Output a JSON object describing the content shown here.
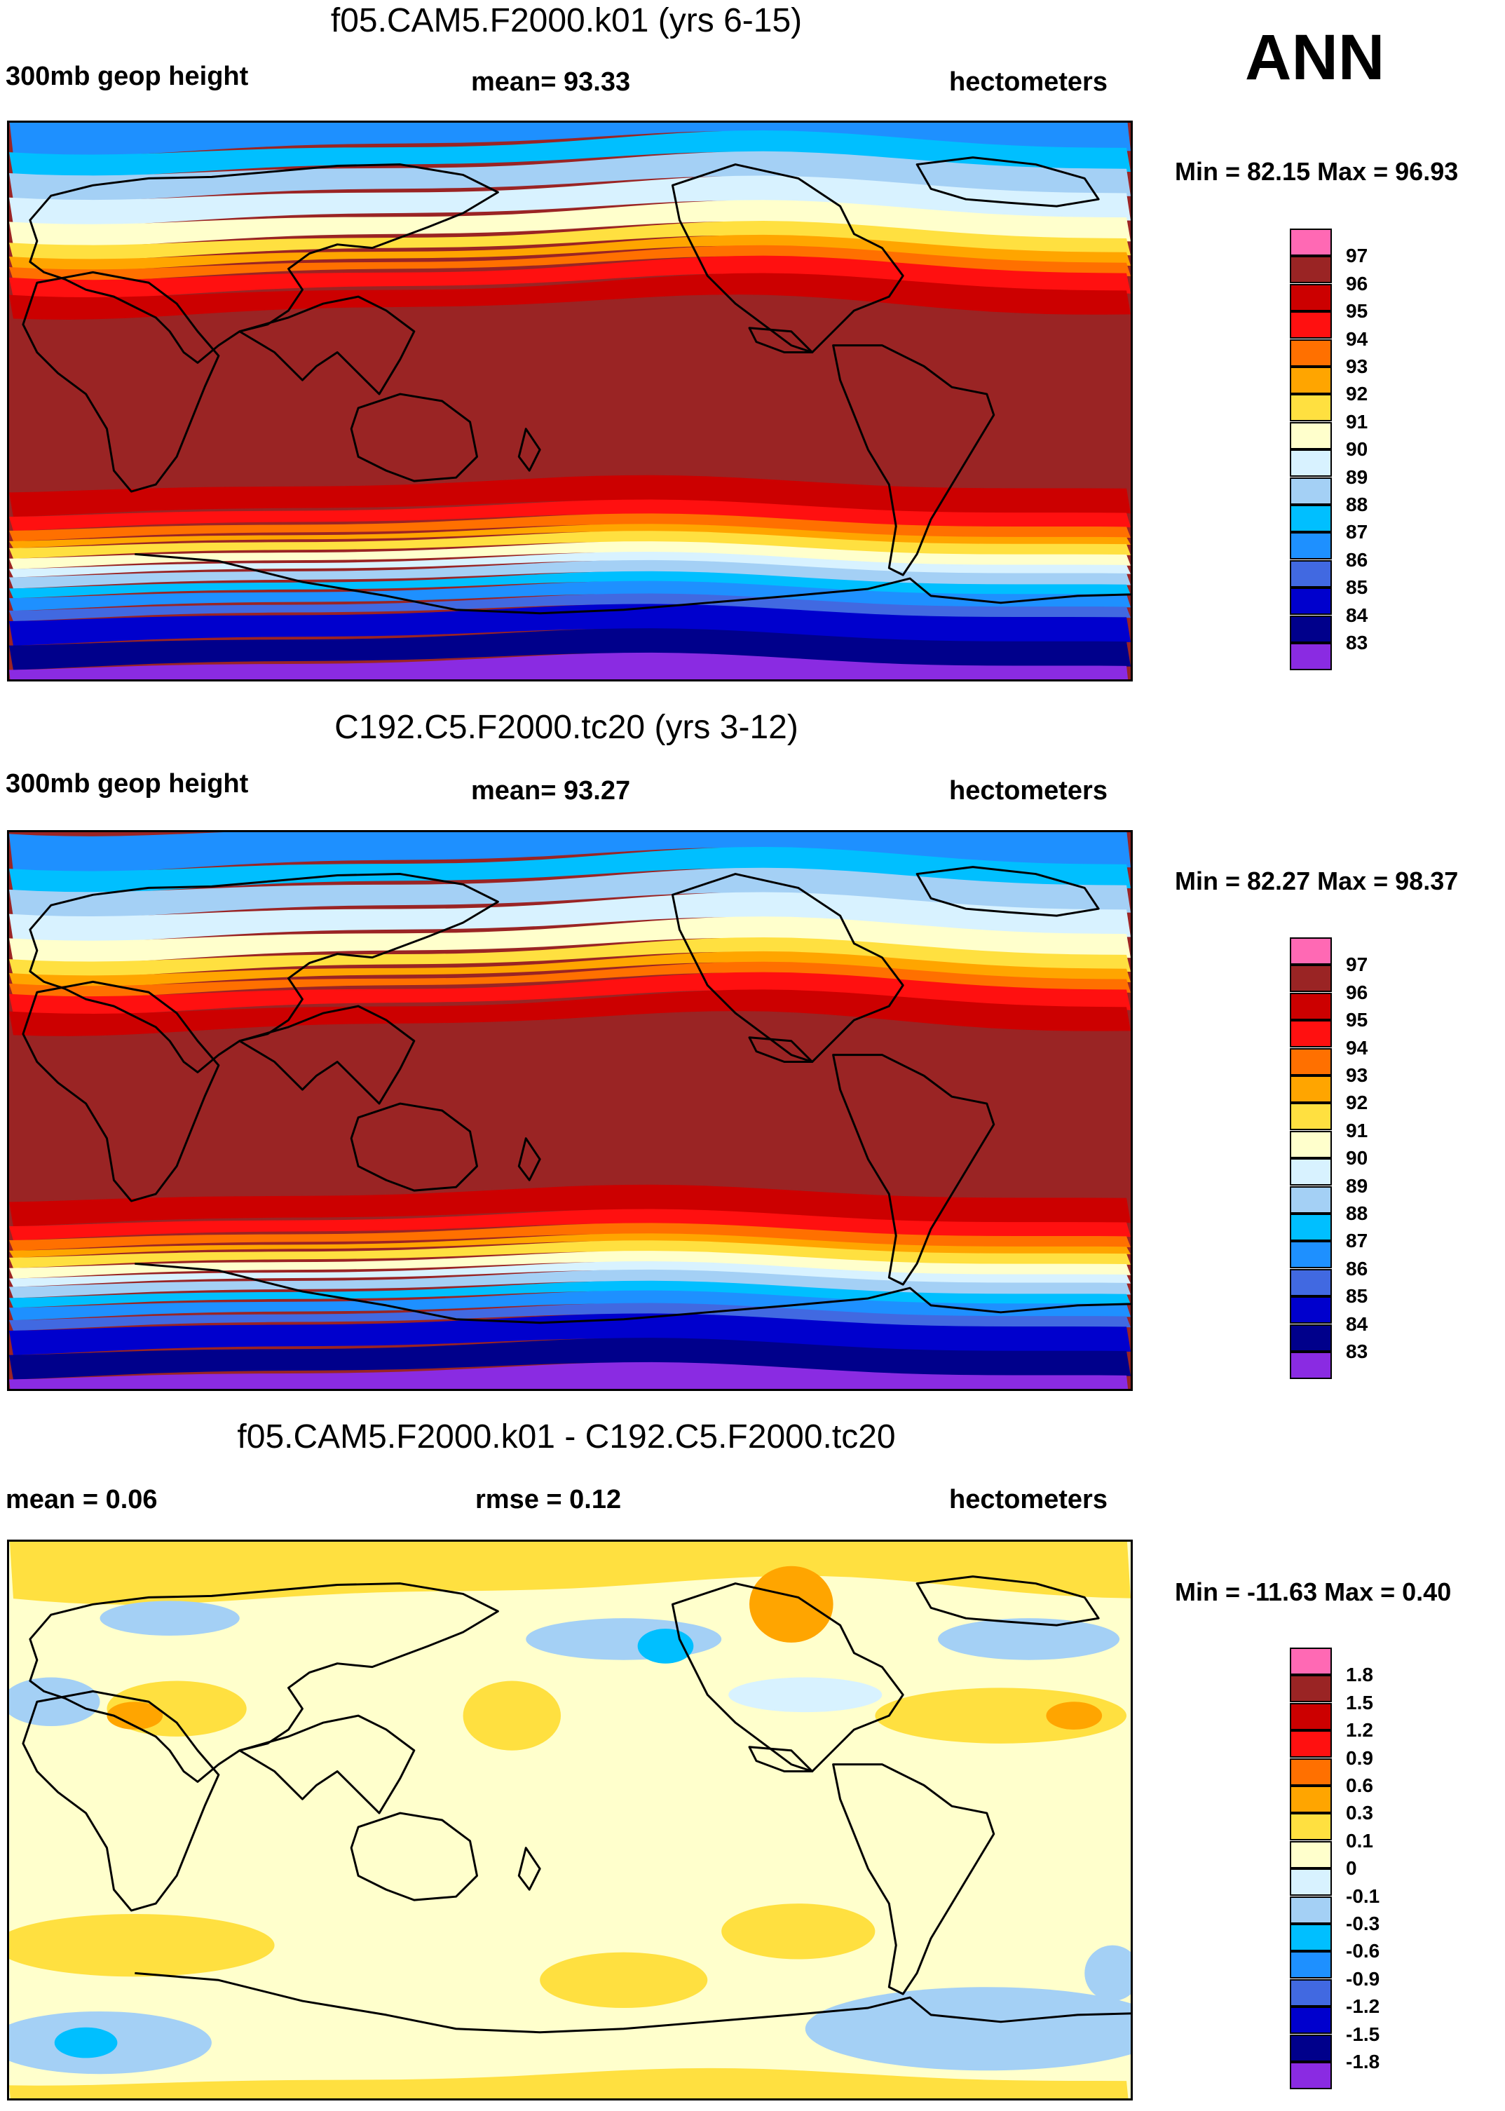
{
  "season": "ANN",
  "colors": {
    "abs": [
      "#8a2be2",
      "#00008b",
      "#0000cd",
      "#4169e1",
      "#1e90ff",
      "#00bfff",
      "#a4d0f5",
      "#d8f2ff",
      "#ffffcc",
      "#ffe040",
      "#ffa500",
      "#ff7000",
      "#ff1010",
      "#cc0000",
      "#9a2424",
      "#ff69b4"
    ],
    "diff": [
      "#8a2be2",
      "#00008b",
      "#0000cd",
      "#4169e1",
      "#1e90ff",
      "#00bfff",
      "#a4d0f5",
      "#d8f2ff",
      "#ffffcc",
      "#ffe040",
      "#ffa500",
      "#ff7000",
      "#ff1010",
      "#cc0000",
      "#9a2424",
      "#ff69b4"
    ],
    "coast": "#000000"
  },
  "panels": [
    {
      "title": "f05.CAM5.F2000.k01 (yrs 6-15)",
      "left_label": "300mb geop height",
      "center_label": "mean=  93.33",
      "units": "hectometers",
      "minmax": "Min =  82.15 Max =  96.93",
      "chart_data": {
        "type": "heatmap",
        "variable": "300mb geop height",
        "units": "hectometers",
        "mean": 93.33,
        "min": 82.15,
        "max": 96.93,
        "levels": [
          "97",
          "96",
          "95",
          "94",
          "93",
          "92",
          "91",
          "90",
          "89",
          "88",
          "87",
          "86",
          "85",
          "84",
          "83"
        ]
      }
    },
    {
      "title": "C192.C5.F2000.tc20 (yrs 3-12)",
      "left_label": "300mb geop height",
      "center_label": "mean=  93.27",
      "units": "hectometers",
      "minmax": "Min =  82.27 Max =  98.37",
      "chart_data": {
        "type": "heatmap",
        "variable": "300mb geop height",
        "units": "hectometers",
        "mean": 93.27,
        "min": 82.27,
        "max": 98.37,
        "levels": [
          "97",
          "96",
          "95",
          "94",
          "93",
          "92",
          "91",
          "90",
          "89",
          "88",
          "87",
          "86",
          "85",
          "84",
          "83"
        ]
      }
    },
    {
      "title": "f05.CAM5.F2000.k01 - C192.C5.F2000.tc20",
      "left_label": "mean =   0.06",
      "center_label": "rmse =   0.12",
      "units": "hectometers",
      "minmax": "Min = -11.63 Max =   0.40",
      "chart_data": {
        "type": "heatmap",
        "variable": "difference",
        "units": "hectometers",
        "mean": 0.06,
        "rmse": 0.12,
        "min": -11.63,
        "max": 0.4,
        "levels": [
          "1.8",
          "1.5",
          "1.2",
          "0.9",
          "0.6",
          "0.3",
          "0.1",
          "0",
          "-0.1",
          "-0.3",
          "-0.6",
          "-0.9",
          "-1.2",
          "-1.5",
          "-1.8"
        ]
      }
    }
  ]
}
